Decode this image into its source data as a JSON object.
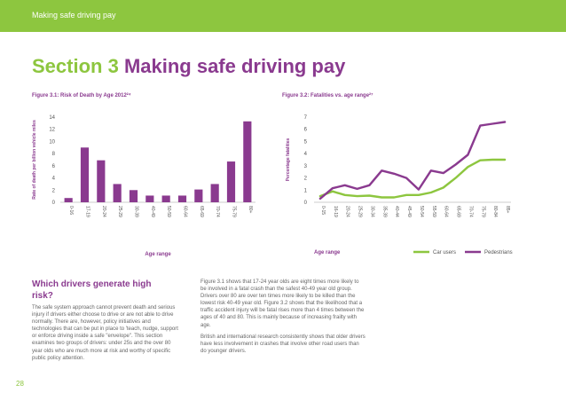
{
  "header": {
    "title": "Making safe driving pay"
  },
  "section": {
    "label": "Section 3",
    "name": "Making safe driving pay"
  },
  "colors": {
    "green": "#8dc63f",
    "purple": "#8a3a8f"
  },
  "chart_data": [
    {
      "type": "bar",
      "title": "Figure 3.1: Risk of Death by Age 2012²⁴",
      "xlabel": "Age range",
      "ylabel": "Rate of death per billion vehicle miles",
      "ylim": [
        0,
        14
      ],
      "yticks": [
        0,
        2,
        4,
        6,
        8,
        10,
        12,
        14
      ],
      "categories": [
        "0-16",
        "17-19",
        "20-24",
        "25-29",
        "30-39",
        "40-49",
        "50-59",
        "60-64",
        "65-69",
        "70-74",
        "75-79",
        "80+"
      ],
      "values": [
        0.7,
        9.0,
        6.9,
        3.0,
        2.0,
        1.1,
        1.1,
        1.1,
        2.1,
        3.0,
        6.7,
        13.3
      ],
      "color": "#8a3a8f",
      "grid": false
    },
    {
      "type": "line",
      "title": "Figure 3.2: Fatalities vs. age range²⁷",
      "xlabel": "Age range",
      "ylabel": "Percentage fatalities",
      "ylim": [
        0,
        7
      ],
      "yticks": [
        0,
        1,
        2,
        3,
        4,
        5,
        6,
        7
      ],
      "categories": [
        "0-15",
        "16-19",
        "20-24",
        "25-29",
        "30-34",
        "35-39",
        "40-44",
        "45-49",
        "50-54",
        "55-59",
        "60-64",
        "65-69",
        "70-74",
        "75-79",
        "80-84",
        "85+"
      ],
      "series": [
        {
          "name": "Car users",
          "color": "#8dc63f",
          "values": [
            0.5,
            0.9,
            0.6,
            0.5,
            0.55,
            0.4,
            0.4,
            0.6,
            0.6,
            0.8,
            1.2,
            2.0,
            2.9,
            3.45,
            3.5,
            3.5
          ]
        },
        {
          "name": "Pedestrians",
          "color": "#8a3a8f",
          "values": [
            0.3,
            1.15,
            1.4,
            1.1,
            1.4,
            2.6,
            2.35,
            2.0,
            1.05,
            2.6,
            2.4,
            3.1,
            3.9,
            6.3,
            6.45,
            6.6
          ]
        }
      ],
      "legend": "bottom-right",
      "grid": false
    }
  ],
  "sidebar": {
    "heading": "Which drivers generate high risk?",
    "body": "The safe system approach cannot prevent death and serious injury if drivers either choose to drive or are not able to drive normally. There are, however, policy initiatives and technologies that can be put in place to 'teach, nudge, support or enforce driving inside a safe \"envelope\". This section examines two groups of drivers: under 25s and the over 80 year olds who are much more at risk and worthy of specific public policy attention."
  },
  "main_text": {
    "p1": "Figure 3.1 shows that 17-24 year olds are eight times more likely to be involved in a fatal crash than the safest 40-49 year old group. Drivers over 80 are over ten times more likely to be killed than the lowest risk 40-49 year old. Figure 3.2 shows that the likelihood that a traffic accident injury will be fatal rises more than 4 times between the ages of 40 and 80. This is mainly because of increasing frailty with age.",
    "p2": "British and international research consistently shows that older drivers have less involvement in crashes that involve other road users than do younger drivers."
  },
  "page": {
    "number": "28"
  }
}
